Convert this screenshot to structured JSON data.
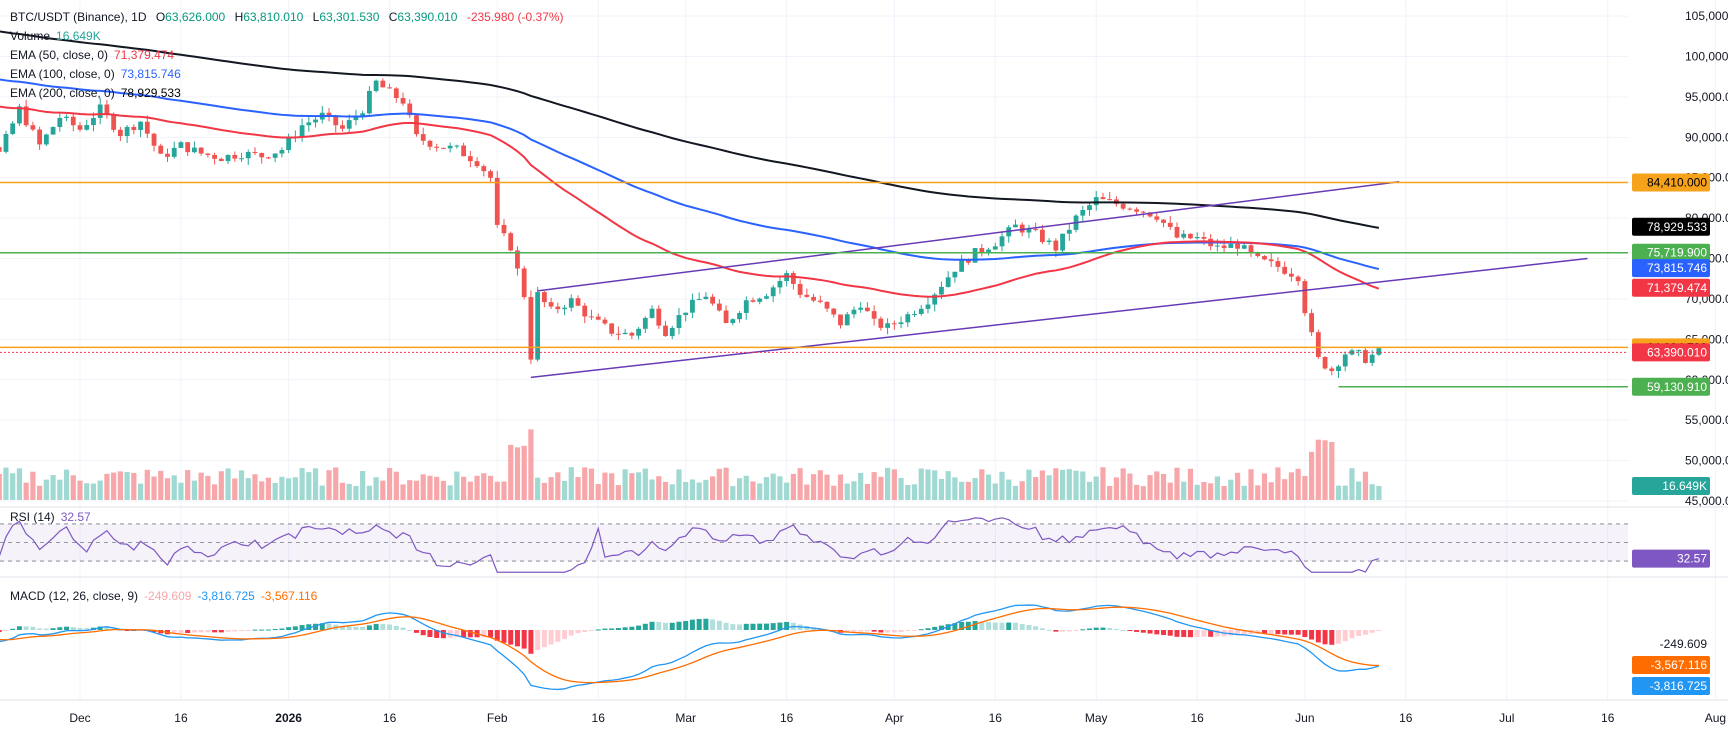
{
  "header": {
    "symbol": "BTC/USDT (Binance), 1D",
    "o_label": "O",
    "o_value": "63,626.000",
    "h_label": "H",
    "h_value": "63,810.010",
    "l_label": "L",
    "l_value": "63,301.530",
    "c_label": "C",
    "c_value": "63,390.010",
    "change": "-235.980 (-0.37%)"
  },
  "indicators": {
    "volume": {
      "label": "Volume",
      "value": "16.649K"
    },
    "ema50": {
      "label": "EMA (50, close, 0)",
      "value": "71,379.474",
      "color": "#f23645"
    },
    "ema100": {
      "label": "EMA (100, close, 0)",
      "value": "73,815.746",
      "color": "#2962ff"
    },
    "ema200": {
      "label": "EMA (200, close, 0)",
      "value": "78,929.533",
      "color": "#000000"
    },
    "rsi": {
      "label": "RSI (14)",
      "value": "32.57",
      "color": "#7e57c2"
    },
    "macd": {
      "label": "MACD (12, 26, close, 9)",
      "hist": "-249.609",
      "macd": "-3,816.725",
      "signal": "-3,567.116"
    }
  },
  "colors": {
    "up": "#26a69a",
    "down": "#ef5350",
    "vol_up": "#9fd9d2",
    "vol_down": "#f7a7a9",
    "orange": "#f7a21b",
    "green": "#4caf50",
    "purple": "#673ab7",
    "blue": "#2962ff",
    "red": "#f23645",
    "macd_line": "#2196f3",
    "signal_line": "#ff6d00",
    "grid": "#f0f3fa",
    "text": "#131722"
  },
  "chart_data": {
    "type": "candlestick",
    "symbol": "BTC/USDT",
    "exchange": "Binance",
    "interval": "1D",
    "price_axis_ticks": [
      "105,000.000",
      "100,000.000",
      "95,000.000",
      "90,000.000",
      "85,000.000",
      "80,000.000",
      "75,000.000",
      "70,000.000",
      "65,000.000",
      "60,000.000",
      "55,000.000",
      "50,000.000",
      "45,000.000"
    ],
    "price_axis_values": [
      105000,
      100000,
      95000,
      90000,
      85000,
      80000,
      75000,
      70000,
      65000,
      60000,
      55000,
      50000,
      45000
    ],
    "price_range": [
      44500,
      106500
    ],
    "time_axis_labels": [
      "Dec",
      "16",
      "2026",
      "16",
      "Feb",
      "16",
      "Mar",
      "16",
      "Apr",
      "16",
      "May",
      "16",
      "Jun",
      "16",
      "Jul",
      "16",
      "Aug"
    ],
    "time_axis_days": [
      0,
      15,
      31,
      46,
      62,
      77,
      90,
      105,
      121,
      136,
      151,
      166,
      182,
      197,
      212,
      227,
      243
    ],
    "ohlc_anchor_points": [
      [
        -22,
        93500
      ],
      [
        -20,
        86000
      ],
      [
        -18,
        89000
      ],
      [
        -15,
        91500
      ],
      [
        -12,
        88000
      ],
      [
        -9,
        93500
      ],
      [
        -6,
        89000
      ],
      [
        -3,
        92500
      ],
      [
        0,
        91000
      ],
      [
        3,
        93500
      ],
      [
        6,
        90500
      ],
      [
        9,
        92000
      ],
      [
        12,
        87500
      ],
      [
        15,
        89000
      ],
      [
        18,
        88000
      ],
      [
        21,
        87500
      ],
      [
        24,
        88000
      ],
      [
        27,
        87700
      ],
      [
        30,
        88500
      ],
      [
        33,
        91500
      ],
      [
        36,
        92700
      ],
      [
        39,
        91000
      ],
      [
        42,
        93500
      ],
      [
        44,
        96800
      ],
      [
        46,
        95500
      ],
      [
        48,
        94500
      ],
      [
        50,
        90000
      ],
      [
        53,
        89000
      ],
      [
        56,
        88500
      ],
      [
        59,
        87000
      ],
      [
        61,
        85000
      ],
      [
        62,
        78700
      ],
      [
        64,
        76500
      ],
      [
        66,
        70500
      ],
      [
        67,
        62900
      ],
      [
        68,
        70500
      ],
      [
        70,
        68500
      ],
      [
        73,
        69800
      ],
      [
        76,
        67500
      ],
      [
        79,
        66000
      ],
      [
        82,
        65500
      ],
      [
        85,
        68600
      ],
      [
        87,
        66000
      ],
      [
        90,
        68700
      ],
      [
        93,
        70500
      ],
      [
        96,
        66800
      ],
      [
        99,
        69800
      ],
      [
        102,
        70800
      ],
      [
        105,
        73000
      ],
      [
        107,
        70800
      ],
      [
        110,
        69300
      ],
      [
        113,
        67000
      ],
      [
        116,
        69500
      ],
      [
        118,
        67000
      ],
      [
        120,
        66500
      ],
      [
        123,
        68000
      ],
      [
        126,
        69900
      ],
      [
        128,
        71800
      ],
      [
        130,
        73800
      ],
      [
        133,
        75700
      ],
      [
        136,
        77000
      ],
      [
        139,
        79000
      ],
      [
        142,
        78000
      ],
      [
        145,
        76300
      ],
      [
        148,
        80000
      ],
      [
        151,
        82300
      ],
      [
        154,
        81800
      ],
      [
        157,
        81200
      ],
      [
        160,
        80300
      ],
      [
        163,
        77600
      ],
      [
        166,
        77500
      ],
      [
        169,
        76300
      ],
      [
        172,
        76700
      ],
      [
        175,
        74800
      ],
      [
        178,
        74000
      ],
      [
        181,
        72800
      ],
      [
        182,
        68700
      ],
      [
        183,
        65400
      ],
      [
        184,
        62500
      ],
      [
        186,
        61200
      ],
      [
        188,
        63300
      ],
      [
        190,
        63100
      ],
      [
        191,
        62600
      ],
      [
        193,
        63400
      ]
    ],
    "ema_levels": [
      {
        "name": "EMA 50",
        "value": 71379.474
      },
      {
        "name": "EMA 100",
        "value": 73815.746
      },
      {
        "name": "EMA 200",
        "value": 78929.533
      }
    ],
    "horizontal_levels": [
      {
        "price": 84410.0,
        "label": "84,410.000",
        "color": "orange"
      },
      {
        "price": 75719.9,
        "label": "75,719.900",
        "color": "green"
      },
      {
        "price": 64004.793,
        "label": "64,004.793",
        "color": "orange"
      },
      {
        "price": 63390.01,
        "label": "63,390.010",
        "color": "red"
      },
      {
        "price": 59130.91,
        "label": "59,130.910",
        "color": "green"
      }
    ],
    "trend_channel": {
      "upper": [
        [
          68,
          71000
        ],
        [
          196,
          84500
        ]
      ],
      "lower": [
        [
          67,
          60300
        ],
        [
          224,
          75000
        ]
      ]
    },
    "last_price": 63390.01,
    "volume_last": "16.649K",
    "rsi": {
      "period": 14,
      "last": 32.57,
      "bands": [
        70,
        50,
        30
      ]
    },
    "macd": {
      "fast": 12,
      "slow": 26,
      "signal": 9,
      "hist_last": -249.609,
      "macd_last": -3816.725,
      "signal_last": -3567.116
    }
  }
}
